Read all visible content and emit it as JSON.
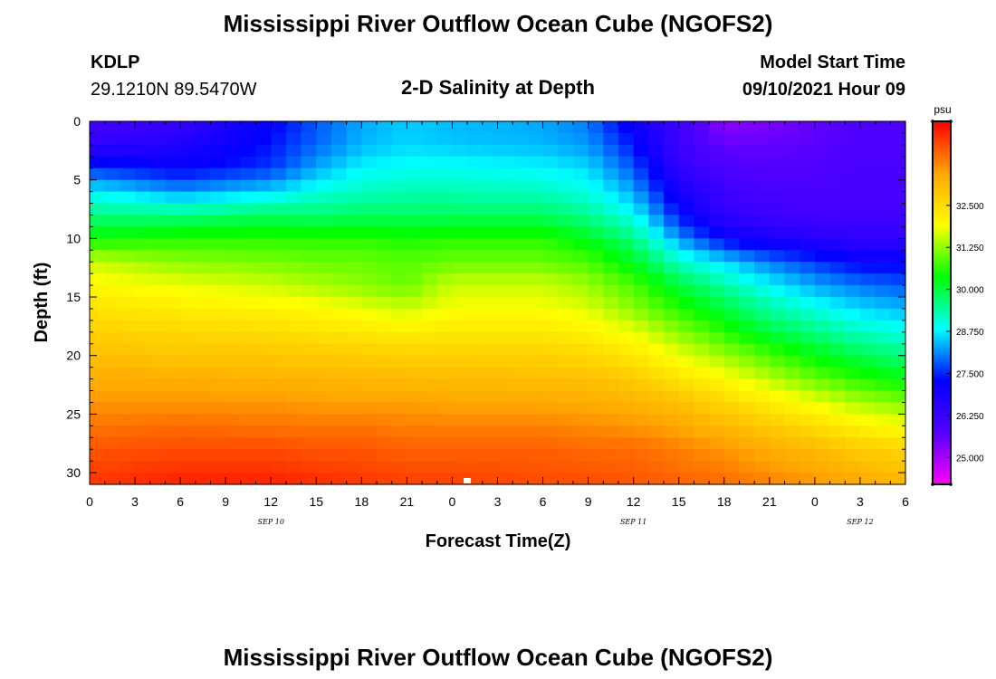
{
  "header": {
    "title": "Mississippi River Outflow Ocean Cube (NGOFS2)",
    "station": "KDLP",
    "coords": "29.1210N  89.5470W",
    "plot_title": "2-D Salinity at Depth",
    "model_label": "Model Start Time",
    "model_time": "09/10/2021 Hour 09"
  },
  "footer": {
    "title": "Mississippi River Outflow Ocean Cube (NGOFS2)"
  },
  "chart_data": {
    "type": "heatmap",
    "title": "2-D Salinity at Depth",
    "xlabel": "Forecast Time(Z)",
    "ylabel": "Depth (ft)",
    "x_ticks": [
      "0",
      "3",
      "6",
      "9",
      "12",
      "15",
      "18",
      "21",
      "0",
      "3",
      "6",
      "9",
      "12",
      "15",
      "18",
      "21",
      "0",
      "3",
      "6"
    ],
    "date_labels": [
      {
        "label": "SEP 10",
        "tick_index": 4
      },
      {
        "label": "SEP 11",
        "tick_index": 12
      },
      {
        "label": "SEP 12",
        "tick_index": 17
      }
    ],
    "y_ticks": [
      0,
      5,
      10,
      15,
      20,
      25,
      30
    ],
    "ylim": [
      31,
      0
    ],
    "x_range_hours": [
      0,
      54
    ],
    "colorbar": {
      "unit": "psu",
      "ticks": [
        "32.500",
        "31.250",
        "30.000",
        "28.750",
        "27.500",
        "26.250",
        "25.000"
      ],
      "range": [
        24.2,
        35.0
      ],
      "palette": [
        "#ff00ff",
        "#5500ff",
        "#0000ff",
        "#00ffff",
        "#00ff00",
        "#ffff00",
        "#ffa500",
        "#ff0000"
      ]
    },
    "salinity_psu_by_hour": {
      "hours": [
        0,
        6,
        12,
        15,
        18,
        21,
        24,
        30,
        33,
        36,
        39,
        42,
        45,
        48,
        51,
        54
      ],
      "depths_ft": [
        0,
        2,
        4,
        6,
        8,
        10,
        12,
        14,
        16,
        18,
        20,
        22,
        24,
        26,
        28,
        31
      ],
      "values": [
        [
          26.0,
          26.3,
          27.2,
          27.8,
          28.3,
          28.5,
          28.4,
          28.3,
          28.0,
          27.0,
          26.2,
          25.2,
          25.4,
          25.6,
          25.9,
          25.9
        ],
        [
          26.4,
          26.7,
          27.4,
          27.9,
          28.4,
          28.6,
          28.5,
          28.4,
          28.2,
          27.4,
          26.2,
          25.6,
          25.6,
          25.7,
          25.9,
          25.9
        ],
        [
          27.6,
          27.2,
          27.6,
          28.3,
          28.8,
          28.9,
          28.9,
          28.8,
          28.6,
          27.8,
          26.4,
          25.9,
          25.8,
          25.8,
          26.0,
          26.0
        ],
        [
          28.8,
          28.2,
          28.6,
          29.0,
          29.2,
          29.3,
          29.3,
          29.2,
          29.0,
          28.3,
          26.9,
          26.2,
          26.0,
          26.0,
          26.0,
          26.0
        ],
        [
          29.6,
          29.6,
          29.8,
          29.7,
          29.8,
          29.8,
          29.8,
          29.8,
          29.5,
          28.9,
          27.4,
          26.4,
          26.2,
          26.1,
          26.1,
          26.1
        ],
        [
          30.4,
          30.6,
          30.6,
          30.6,
          30.6,
          30.5,
          30.6,
          30.6,
          30.2,
          29.6,
          28.2,
          27.2,
          26.8,
          26.6,
          26.4,
          26.4
        ],
        [
          31.6,
          31.2,
          31.1,
          31.0,
          31.0,
          30.9,
          31.0,
          31.0,
          30.8,
          30.2,
          29.2,
          28.6,
          28.0,
          27.6,
          27.2,
          27.2
        ],
        [
          32.0,
          31.8,
          31.6,
          31.4,
          31.2,
          31.0,
          31.6,
          31.6,
          31.3,
          30.8,
          30.0,
          29.4,
          28.8,
          28.3,
          28.0,
          27.8
        ],
        [
          32.4,
          32.2,
          32.1,
          32.0,
          31.8,
          31.6,
          31.9,
          31.9,
          31.7,
          31.2,
          30.6,
          30.0,
          29.4,
          29.0,
          28.6,
          28.4
        ],
        [
          32.7,
          32.6,
          32.5,
          32.4,
          32.3,
          32.2,
          32.3,
          32.3,
          32.1,
          31.8,
          31.2,
          30.6,
          30.0,
          29.6,
          29.2,
          29.0
        ],
        [
          33.0,
          32.9,
          32.9,
          32.8,
          32.8,
          32.7,
          32.7,
          32.7,
          32.6,
          32.3,
          31.8,
          31.3,
          30.8,
          30.3,
          29.9,
          29.6
        ],
        [
          33.3,
          33.3,
          33.2,
          33.2,
          33.1,
          33.1,
          33.1,
          33.0,
          33.0,
          32.8,
          32.4,
          32.0,
          31.5,
          31.0,
          30.6,
          30.3
        ],
        [
          33.6,
          33.6,
          33.6,
          33.5,
          33.5,
          33.5,
          33.4,
          33.4,
          33.3,
          33.2,
          33.0,
          32.6,
          32.2,
          31.8,
          31.4,
          31.1
        ],
        [
          33.9,
          34.0,
          33.9,
          33.9,
          33.9,
          33.8,
          33.8,
          33.8,
          33.7,
          33.6,
          33.4,
          33.1,
          32.8,
          32.5,
          32.1,
          31.9
        ],
        [
          34.2,
          34.3,
          34.3,
          34.2,
          34.2,
          34.1,
          34.1,
          34.1,
          34.0,
          34.0,
          33.8,
          33.6,
          33.3,
          33.1,
          32.8,
          32.6
        ],
        [
          34.5,
          34.7,
          34.7,
          34.6,
          34.5,
          34.4,
          34.4,
          34.3,
          34.3,
          34.2,
          34.1,
          34.0,
          33.8,
          33.6,
          33.4,
          33.2
        ]
      ]
    }
  }
}
